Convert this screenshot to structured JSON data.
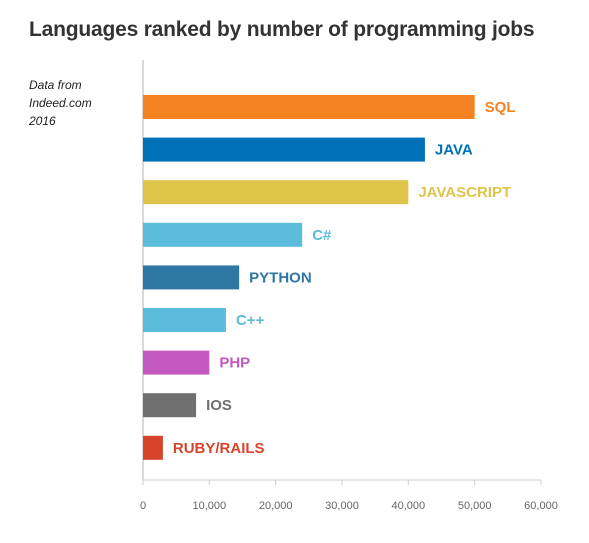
{
  "title": "Languages ranked by number of programming jobs",
  "source_note": [
    "Data from",
    "Indeed.com",
    "2016"
  ],
  "chart_data": {
    "type": "bar",
    "orientation": "horizontal",
    "title": "Languages ranked by number of programming jobs",
    "categories": [
      "SQL",
      "JAVA",
      "JAVASCRIPT",
      "C#",
      "PYTHON",
      "C++",
      "PHP",
      "IOS",
      "RUBY/RAILS"
    ],
    "values": [
      50000,
      42500,
      40000,
      24000,
      14500,
      12500,
      10000,
      8000,
      3000
    ],
    "colors": [
      "#f58220",
      "#0071b9",
      "#dfc44a",
      "#5bbcdc",
      "#2e77a5",
      "#5bbcdc",
      "#c459c2",
      "#707070",
      "#d6442a"
    ],
    "xlim": [
      0,
      60000
    ],
    "xticks": [
      0,
      10000,
      20000,
      30000,
      40000,
      50000,
      60000
    ],
    "xtick_labels": [
      "0",
      "10,000",
      "20,000",
      "30,000",
      "40,000",
      "50,000",
      "60,000"
    ],
    "xlabel": "",
    "ylabel": "",
    "grid": false,
    "legend": "none"
  }
}
